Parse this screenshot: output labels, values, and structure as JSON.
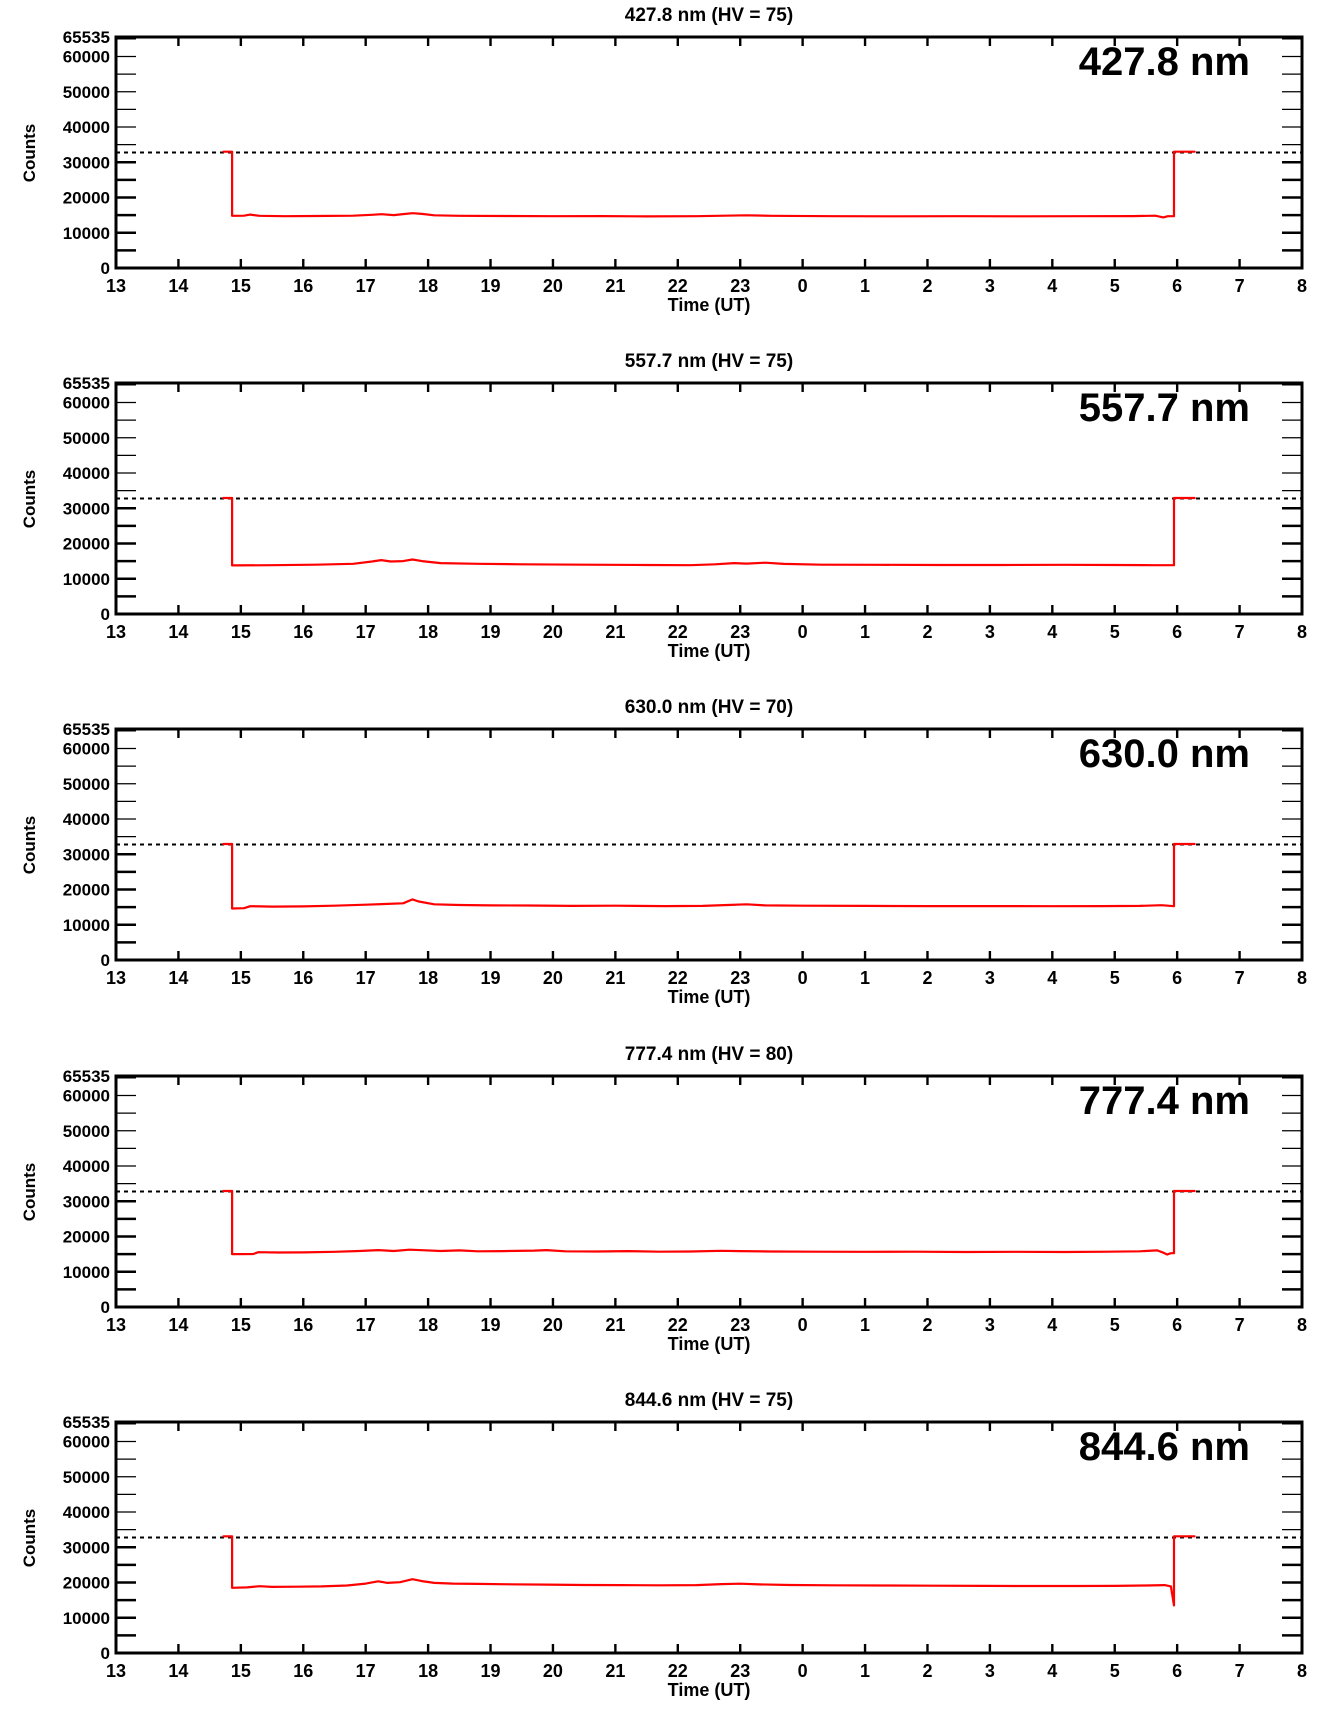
{
  "chart_data": {
    "type": "line",
    "shared": {
      "xlabel": "Time (UT)",
      "ylabel": "Counts",
      "x_range_hours": [
        13,
        32
      ],
      "x_tick_labels": [
        "13",
        "14",
        "15",
        "16",
        "17",
        "18",
        "19",
        "20",
        "21",
        "22",
        "23",
        "0",
        "1",
        "2",
        "3",
        "4",
        "5",
        "6",
        "7",
        "8"
      ],
      "y_max": 65535,
      "y_major_ticks": [
        0,
        10000,
        20000,
        30000,
        40000,
        50000,
        60000
      ],
      "y_tick_labels": [
        "0",
        "10000",
        "20000",
        "30000",
        "40000",
        "50000",
        "60000"
      ],
      "y_top_tick": {
        "value": 65535,
        "label": "65535"
      },
      "y_minor_step": 5000,
      "dashed_line_counts": 32768,
      "line_color": "#ff0000",
      "axis_color": "#000000",
      "grid": false,
      "legend": false
    },
    "plots": [
      {
        "title": "427.8 nm (HV = 75)",
        "annotation": "427.8 nm",
        "wavelength_nm": 427.8,
        "hv": 75,
        "series": [
          [
            14.72,
            33000
          ],
          [
            14.86,
            33000
          ],
          [
            14.86,
            14800
          ],
          [
            15.05,
            14850
          ],
          [
            15.15,
            15150
          ],
          [
            15.3,
            14800
          ],
          [
            15.7,
            14700
          ],
          [
            16.2,
            14750
          ],
          [
            16.8,
            14850
          ],
          [
            17.1,
            15100
          ],
          [
            17.25,
            15250
          ],
          [
            17.45,
            15000
          ],
          [
            17.6,
            15300
          ],
          [
            17.75,
            15550
          ],
          [
            17.9,
            15350
          ],
          [
            18.1,
            14950
          ],
          [
            18.5,
            14800
          ],
          [
            19.2,
            14750
          ],
          [
            20.0,
            14700
          ],
          [
            20.8,
            14720
          ],
          [
            21.5,
            14650
          ],
          [
            22.3,
            14700
          ],
          [
            22.75,
            14850
          ],
          [
            23.1,
            14950
          ],
          [
            23.5,
            14800
          ],
          [
            24.5,
            14700
          ],
          [
            25.5,
            14680
          ],
          [
            26.5,
            14700
          ],
          [
            27.5,
            14660
          ],
          [
            28.5,
            14700
          ],
          [
            29.3,
            14720
          ],
          [
            29.65,
            14850
          ],
          [
            29.78,
            14350
          ],
          [
            29.85,
            14700
          ],
          [
            29.95,
            14700
          ],
          [
            29.95,
            33000
          ],
          [
            30.28,
            33000
          ]
        ]
      },
      {
        "title": "557.7 nm (HV = 75)",
        "annotation": "557.7 nm",
        "wavelength_nm": 557.7,
        "hv": 75,
        "series": [
          [
            14.72,
            32900
          ],
          [
            14.86,
            32900
          ],
          [
            14.86,
            13800
          ],
          [
            15.5,
            13850
          ],
          [
            16.2,
            14000
          ],
          [
            16.8,
            14250
          ],
          [
            17.1,
            14900
          ],
          [
            17.25,
            15300
          ],
          [
            17.4,
            14900
          ],
          [
            17.6,
            15000
          ],
          [
            17.75,
            15450
          ],
          [
            17.9,
            15000
          ],
          [
            18.2,
            14450
          ],
          [
            18.8,
            14250
          ],
          [
            19.5,
            14100
          ],
          [
            20.5,
            14000
          ],
          [
            21.5,
            13900
          ],
          [
            22.2,
            13850
          ],
          [
            22.6,
            14100
          ],
          [
            22.9,
            14450
          ],
          [
            23.1,
            14300
          ],
          [
            23.4,
            14550
          ],
          [
            23.7,
            14200
          ],
          [
            24.3,
            14000
          ],
          [
            25.2,
            13950
          ],
          [
            26.2,
            13900
          ],
          [
            27.2,
            13900
          ],
          [
            28.2,
            13950
          ],
          [
            29.0,
            13900
          ],
          [
            29.6,
            13850
          ],
          [
            29.95,
            13850
          ],
          [
            29.95,
            32900
          ],
          [
            30.28,
            32900
          ]
        ]
      },
      {
        "title": "630.0 nm (HV = 70)",
        "annotation": "630.0 nm",
        "wavelength_nm": 630.0,
        "hv": 70,
        "series": [
          [
            14.72,
            32900
          ],
          [
            14.86,
            32900
          ],
          [
            14.86,
            14600
          ],
          [
            15.05,
            14700
          ],
          [
            15.15,
            15250
          ],
          [
            15.5,
            15150
          ],
          [
            16.0,
            15200
          ],
          [
            16.5,
            15400
          ],
          [
            17.0,
            15700
          ],
          [
            17.3,
            15900
          ],
          [
            17.6,
            16100
          ],
          [
            17.75,
            17200
          ],
          [
            17.85,
            16600
          ],
          [
            18.1,
            15800
          ],
          [
            18.5,
            15600
          ],
          [
            19.0,
            15500
          ],
          [
            19.6,
            15450
          ],
          [
            20.3,
            15350
          ],
          [
            21.0,
            15400
          ],
          [
            21.8,
            15300
          ],
          [
            22.4,
            15350
          ],
          [
            22.8,
            15600
          ],
          [
            23.1,
            15800
          ],
          [
            23.4,
            15500
          ],
          [
            24.0,
            15400
          ],
          [
            25.0,
            15350
          ],
          [
            26.0,
            15300
          ],
          [
            27.0,
            15300
          ],
          [
            28.0,
            15250
          ],
          [
            28.8,
            15300
          ],
          [
            29.4,
            15350
          ],
          [
            29.75,
            15550
          ],
          [
            29.95,
            15250
          ],
          [
            29.95,
            32900
          ],
          [
            30.28,
            32900
          ]
        ]
      },
      {
        "title": "777.4 nm (HV = 80)",
        "annotation": "777.4 nm",
        "wavelength_nm": 777.4,
        "hv": 80,
        "series": [
          [
            14.72,
            32900
          ],
          [
            14.86,
            32900
          ],
          [
            14.86,
            15000
          ],
          [
            15.2,
            15050
          ],
          [
            15.28,
            15550
          ],
          [
            15.6,
            15450
          ],
          [
            16.0,
            15500
          ],
          [
            16.5,
            15650
          ],
          [
            16.9,
            15900
          ],
          [
            17.2,
            16150
          ],
          [
            17.45,
            15900
          ],
          [
            17.7,
            16250
          ],
          [
            17.95,
            16100
          ],
          [
            18.2,
            15900
          ],
          [
            18.5,
            16050
          ],
          [
            18.8,
            15800
          ],
          [
            19.2,
            15850
          ],
          [
            19.7,
            16000
          ],
          [
            19.9,
            16150
          ],
          [
            20.2,
            15800
          ],
          [
            20.7,
            15750
          ],
          [
            21.2,
            15850
          ],
          [
            21.7,
            15700
          ],
          [
            22.2,
            15750
          ],
          [
            22.7,
            15950
          ],
          [
            23.0,
            15850
          ],
          [
            23.5,
            15750
          ],
          [
            24.2,
            15700
          ],
          [
            25.0,
            15650
          ],
          [
            25.8,
            15700
          ],
          [
            26.6,
            15600
          ],
          [
            27.4,
            15650
          ],
          [
            28.2,
            15600
          ],
          [
            28.9,
            15700
          ],
          [
            29.4,
            15800
          ],
          [
            29.68,
            16050
          ],
          [
            29.78,
            15400
          ],
          [
            29.84,
            14900
          ],
          [
            29.9,
            15250
          ],
          [
            29.95,
            15250
          ],
          [
            29.95,
            32900
          ],
          [
            30.28,
            32900
          ]
        ]
      },
      {
        "title": "844.6 nm (HV = 75)",
        "annotation": "844.6 nm",
        "wavelength_nm": 844.6,
        "hv": 75,
        "series": [
          [
            14.72,
            33100
          ],
          [
            14.86,
            33100
          ],
          [
            14.86,
            18500
          ],
          [
            15.1,
            18600
          ],
          [
            15.3,
            18950
          ],
          [
            15.5,
            18750
          ],
          [
            15.9,
            18800
          ],
          [
            16.3,
            18900
          ],
          [
            16.7,
            19150
          ],
          [
            17.0,
            19700
          ],
          [
            17.2,
            20350
          ],
          [
            17.35,
            19900
          ],
          [
            17.55,
            20100
          ],
          [
            17.75,
            20950
          ],
          [
            17.9,
            20400
          ],
          [
            18.1,
            19900
          ],
          [
            18.4,
            19700
          ],
          [
            18.8,
            19600
          ],
          [
            19.3,
            19500
          ],
          [
            19.9,
            19400
          ],
          [
            20.5,
            19300
          ],
          [
            21.1,
            19250
          ],
          [
            21.7,
            19200
          ],
          [
            22.3,
            19250
          ],
          [
            22.7,
            19550
          ],
          [
            23.0,
            19650
          ],
          [
            23.3,
            19450
          ],
          [
            23.8,
            19300
          ],
          [
            24.5,
            19200
          ],
          [
            25.3,
            19150
          ],
          [
            26.1,
            19100
          ],
          [
            26.9,
            19050
          ],
          [
            27.7,
            19000
          ],
          [
            28.4,
            19000
          ],
          [
            29.0,
            19050
          ],
          [
            29.5,
            19150
          ],
          [
            29.8,
            19250
          ],
          [
            29.9,
            18900
          ],
          [
            29.95,
            13500
          ],
          [
            29.95,
            33100
          ],
          [
            30.28,
            33100
          ]
        ]
      }
    ]
  }
}
